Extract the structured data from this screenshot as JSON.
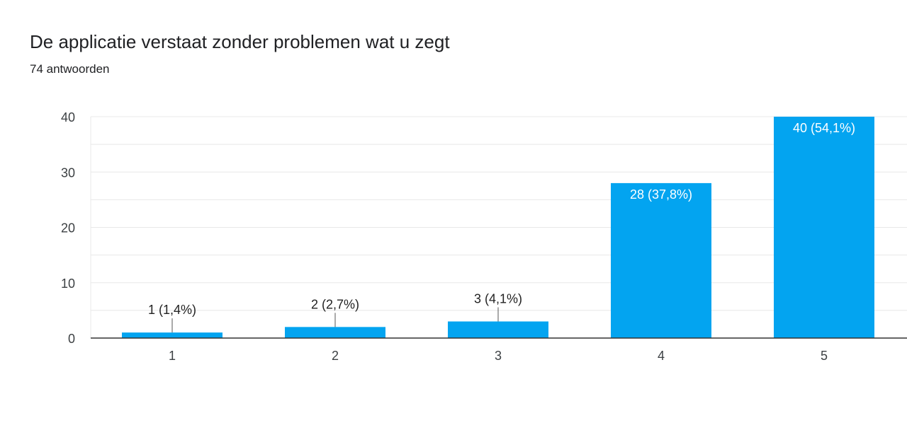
{
  "header": {
    "title": "De applicatie verstaat zonder problemen wat u zegt",
    "subtitle": "74 antwoorden"
  },
  "colors": {
    "bar": "#03a4f0",
    "grid": "#e8e8e8",
    "axis": "#333333"
  },
  "chart_data": {
    "type": "bar",
    "title": "De applicatie verstaat zonder problemen wat u zegt",
    "subtitle": "74 antwoorden",
    "categories": [
      "1",
      "2",
      "3",
      "4",
      "5"
    ],
    "values": [
      1,
      2,
      3,
      28,
      40
    ],
    "data_labels": [
      "1 (1,4%)",
      "2 (2,7%)",
      "3 (4,1%)",
      "28 (37,8%)",
      "40 (54,1%)"
    ],
    "ylim": [
      0,
      40
    ],
    "yticks": [
      0,
      10,
      20,
      30,
      40
    ],
    "xlabel": "",
    "ylabel": "",
    "grid": true
  }
}
